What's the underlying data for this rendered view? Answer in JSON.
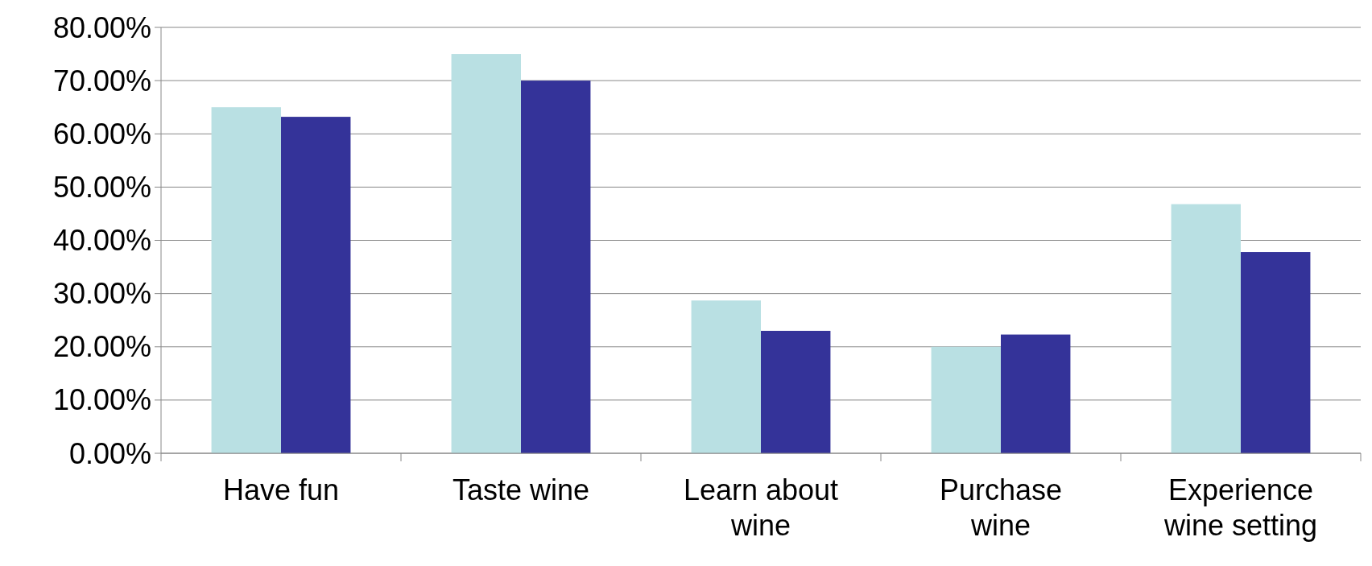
{
  "chart_data": {
    "type": "bar",
    "categories": [
      "Have fun",
      "Taste wine",
      "Learn about wine",
      "Purchase wine",
      "Experience wine setting"
    ],
    "series": [
      {
        "color": "#b9e0e3",
        "values": [
          65.0,
          75.0,
          28.7,
          20.0,
          46.8
        ]
      },
      {
        "color": "#343399",
        "values": [
          63.2,
          70.0,
          23.0,
          22.3,
          37.8
        ]
      }
    ],
    "ylim": [
      0,
      80
    ],
    "yticks": [
      {
        "value": 0,
        "label": "0.00%"
      },
      {
        "value": 10,
        "label": "10.00%"
      },
      {
        "value": 20,
        "label": "20.00%"
      },
      {
        "value": 30,
        "label": "30.00%"
      },
      {
        "value": 40,
        "label": "40.00%"
      },
      {
        "value": 50,
        "label": "50.00%"
      },
      {
        "value": 60,
        "label": "60.00%"
      },
      {
        "value": 70,
        "label": "70.00%"
      },
      {
        "value": 80,
        "label": "80.00%"
      }
    ],
    "grid": "y"
  }
}
